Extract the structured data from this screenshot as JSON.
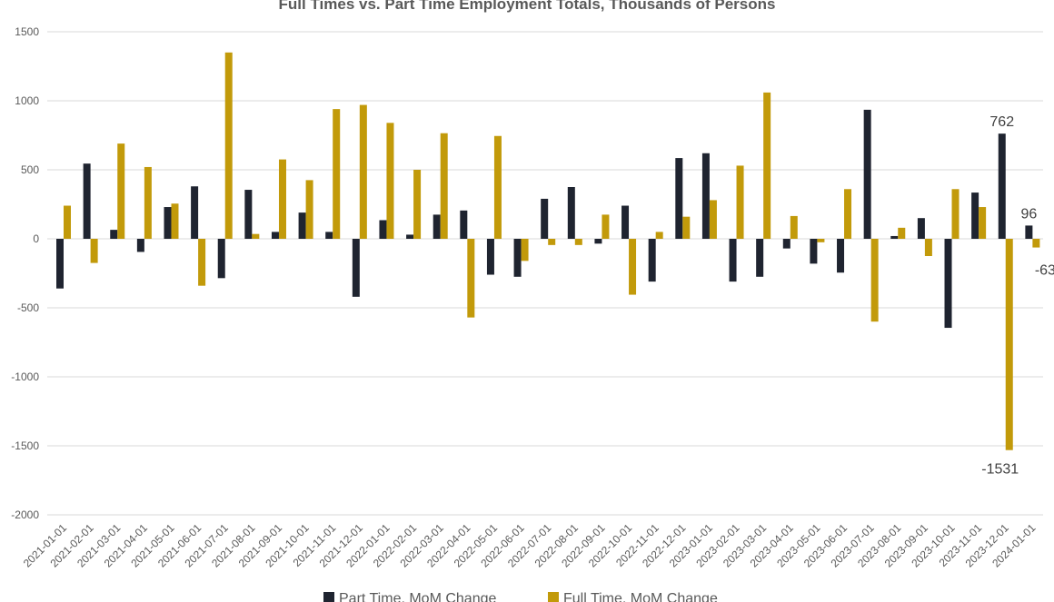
{
  "chart_data": {
    "type": "bar",
    "title": "Full Times vs. Part Time Employment Totals, Thousands of Persons",
    "xlabel": "",
    "ylabel": "",
    "ylim": [
      -2000,
      1500
    ],
    "yticks": [
      1500,
      1000,
      500,
      0,
      -500,
      -1000,
      -1500,
      -2000
    ],
    "grid": true,
    "legend_position": "bottom",
    "categories": [
      "2021-01-01",
      "2021-02-01",
      "2021-03-01",
      "2021-04-01",
      "2021-05-01",
      "2021-06-01",
      "2021-07-01",
      "2021-08-01",
      "2021-09-01",
      "2021-10-01",
      "2021-11-01",
      "2021-12-01",
      "2022-01-01",
      "2022-02-01",
      "2022-03-01",
      "2022-04-01",
      "2022-05-01",
      "2022-06-01",
      "2022-07-01",
      "2022-08-01",
      "2022-09-01",
      "2022-10-01",
      "2022-11-01",
      "2022-12-01",
      "2023-01-01",
      "2023-02-01",
      "2023-03-01",
      "2023-04-01",
      "2023-05-01",
      "2023-06-01",
      "2023-07-01",
      "2023-08-01",
      "2023-09-01",
      "2023-10-01",
      "2023-11-01",
      "2023-12-01",
      "2024-01-01"
    ],
    "series": [
      {
        "name": "Part Time, MoM Change",
        "color": "#1f2430",
        "values": [
          -360,
          545,
          65,
          -95,
          230,
          380,
          -285,
          355,
          50,
          190,
          50,
          -420,
          135,
          30,
          175,
          205,
          -260,
          -275,
          290,
          375,
          -35,
          240,
          -310,
          585,
          620,
          -310,
          -275,
          -70,
          -180,
          -245,
          935,
          20,
          150,
          -645,
          335,
          762,
          96
        ],
        "data_labels": {
          "35": "762",
          "36": "96"
        }
      },
      {
        "name": "Full Time, MoM Change",
        "color": "#c29a0a",
        "values": [
          240,
          -175,
          690,
          520,
          255,
          -340,
          1350,
          35,
          575,
          425,
          940,
          970,
          840,
          500,
          765,
          -570,
          745,
          -160,
          -45,
          -45,
          175,
          -405,
          50,
          160,
          280,
          530,
          1060,
          165,
          -25,
          360,
          -600,
          80,
          -125,
          360,
          230,
          -1531,
          -63
        ],
        "data_labels": {
          "35": "-1531",
          "36": "-63"
        }
      }
    ]
  }
}
